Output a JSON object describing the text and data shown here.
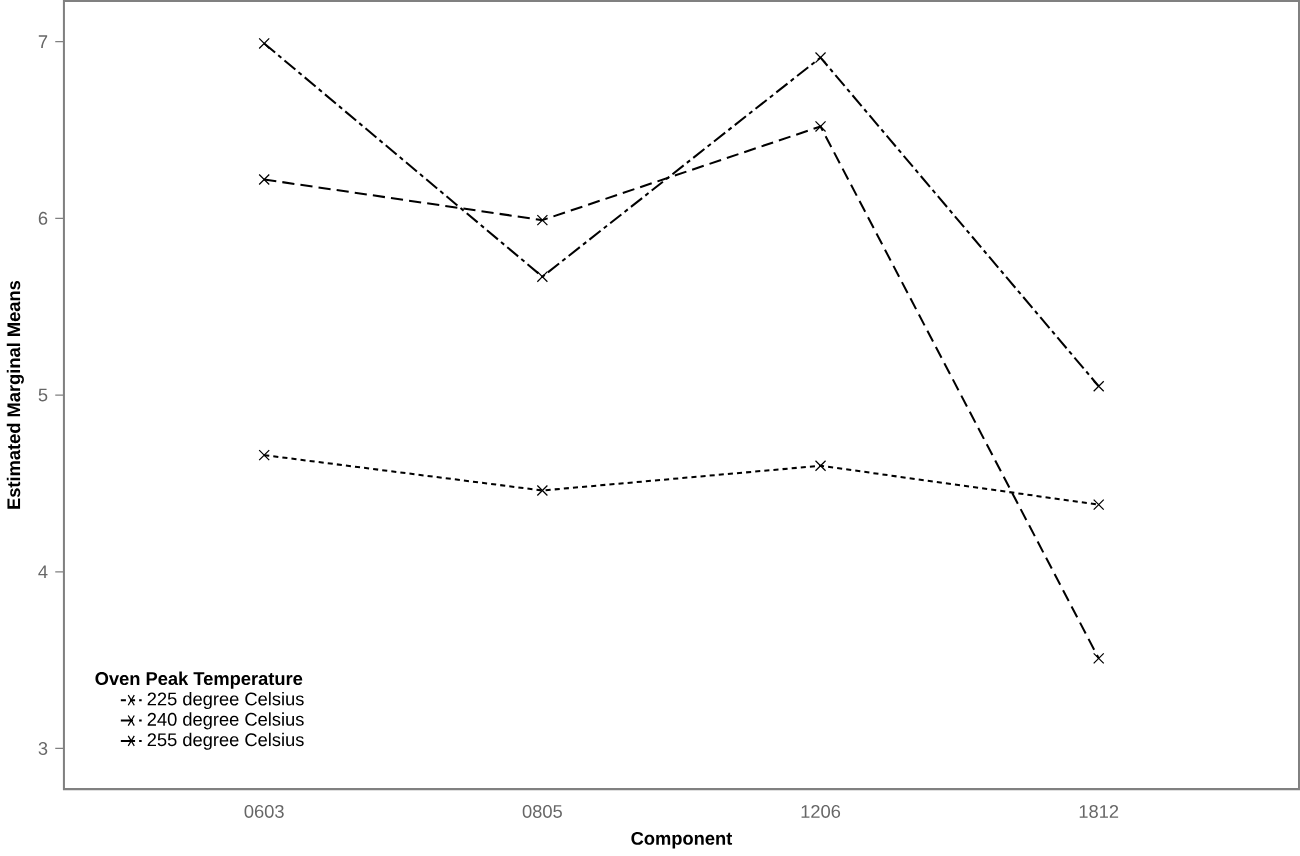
{
  "chart_data": {
    "type": "line",
    "xlabel": "Component",
    "ylabel": "Estimated Marginal Means",
    "legend_title": "Oven Peak Temperature",
    "categories": [
      "0603",
      "0805",
      "1206",
      "1812"
    ],
    "series": [
      {
        "name": "225 degree Celsius",
        "color": "#000000",
        "line_style": "dotted",
        "values": [
          4.66,
          4.46,
          4.6,
          4.38
        ]
      },
      {
        "name": "240 degree Celsius",
        "color": "#000000",
        "line_style": "dashed",
        "values": [
          6.22,
          5.99,
          6.52,
          3.51
        ]
      },
      {
        "name": "255 degree Celsius",
        "color": "#000000",
        "line_style": "dashdot",
        "values": [
          6.99,
          5.67,
          6.91,
          5.05
        ]
      }
    ],
    "marker": "cross",
    "legend": "bottom left",
    "grid": false,
    "ylim": [
      2.77,
      7.23
    ],
    "yticks": [
      3,
      4,
      5,
      6,
      7
    ]
  }
}
